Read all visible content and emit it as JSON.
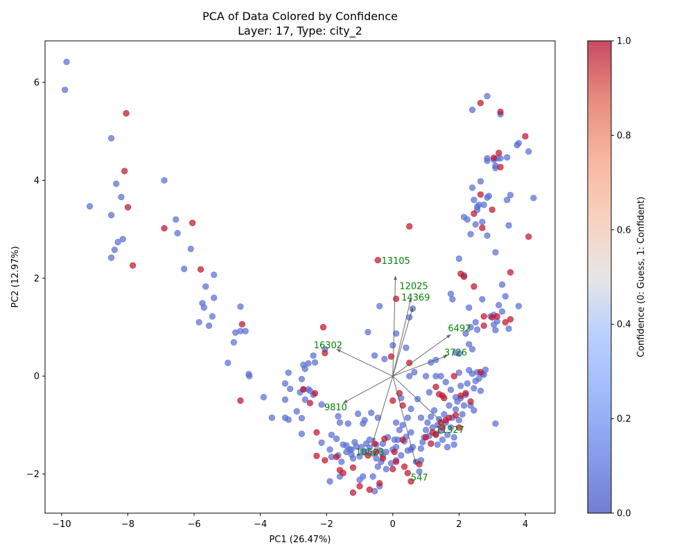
{
  "chart_data": {
    "type": "scatter",
    "title": "PCA of Data Colored by Confidence",
    "subtitle": "Layer: 17, Type: city_2",
    "xlabel": "PC1 (26.47%)",
    "ylabel": "PC2 (12.97%)",
    "xlim": [
      -10.5,
      4.9
    ],
    "ylim": [
      -2.8,
      6.85
    ],
    "xticks": [
      -10,
      -8,
      -6,
      -4,
      -2,
      0,
      2,
      4
    ],
    "yticks": [
      -2,
      0,
      2,
      4,
      6
    ],
    "grid": false,
    "colorbar": {
      "label": "Confidence (0: Guess, 1: Confident)",
      "range": [
        0,
        1
      ],
      "ticks": [
        "0.0",
        "0.2",
        "0.4",
        "0.6",
        "0.8",
        "1.0"
      ],
      "low_color": "#5a6fd3",
      "high_color": "#c0152c",
      "colormap": "coolwarm"
    },
    "points_low": [
      [
        -9.85,
        6.42
      ],
      [
        -9.9,
        5.85
      ],
      [
        -9.15,
        3.47
      ],
      [
        -8.5,
        4.86
      ],
      [
        -8.35,
        3.93
      ],
      [
        -8.2,
        3.66
      ],
      [
        -8.5,
        3.29
      ],
      [
        -8.3,
        2.74
      ],
      [
        -8.4,
        2.58
      ],
      [
        -8.15,
        2.8
      ],
      [
        -8.5,
        2.42
      ],
      [
        -6.9,
        4.0
      ],
      [
        -6.55,
        3.2
      ],
      [
        -6.5,
        2.92
      ],
      [
        -6.3,
        2.19
      ],
      [
        -6.1,
        2.6
      ],
      [
        -5.85,
        1.1
      ],
      [
        -5.75,
        1.49
      ],
      [
        -5.65,
        1.83
      ],
      [
        -5.7,
        1.4
      ],
      [
        -5.4,
        2.07
      ],
      [
        -5.4,
        1.6
      ],
      [
        -5.45,
        1.22
      ],
      [
        -5.55,
        1.03
      ],
      [
        -4.6,
        1.42
      ],
      [
        -4.6,
        0.92
      ],
      [
        -4.45,
        0.92
      ],
      [
        -4.75,
        0.89
      ],
      [
        -4.8,
        0.69
      ],
      [
        -4.98,
        0.27
      ],
      [
        -4.35,
        0.04
      ],
      [
        -4.33,
        0.0
      ],
      [
        -3.9,
        -0.43
      ],
      [
        -3.65,
        -0.85
      ],
      [
        -3.25,
        -0.15
      ],
      [
        -3.15,
        0.07
      ],
      [
        -3.25,
        -0.48
      ],
      [
        -3.1,
        -0.26
      ],
      [
        -3.25,
        -0.85
      ],
      [
        -3.15,
        -0.89
      ],
      [
        -2.9,
        -0.72
      ],
      [
        -2.8,
        -0.33
      ],
      [
        -2.75,
        -0.06
      ],
      [
        -2.7,
        -0.27
      ],
      [
        -2.65,
        0.15
      ],
      [
        -2.55,
        -0.27
      ],
      [
        -2.55,
        0.26
      ],
      [
        -2.7,
        0.23
      ],
      [
        -2.5,
        -0.3
      ],
      [
        -2.4,
        -0.38
      ],
      [
        -2.35,
        0.28
      ],
      [
        -2.4,
        0.42
      ],
      [
        -2.75,
        -0.86
      ],
      [
        -2.65,
        -0.48
      ],
      [
        -2.75,
        -1.18
      ],
      [
        -2.05,
        0.55
      ],
      [
        -2.15,
        -0.58
      ],
      [
        -2.15,
        -1.36
      ],
      [
        -1.9,
        -1.5
      ],
      [
        -1.85,
        -1.2
      ],
      [
        -1.7,
        -1.28
      ],
      [
        -1.6,
        -0.95
      ],
      [
        -1.65,
        -0.82
      ],
      [
        -1.85,
        -1.65
      ],
      [
        -1.65,
        -1.62
      ],
      [
        -1.9,
        -2.15
      ],
      [
        -1.6,
        -2.05
      ],
      [
        -1.5,
        -1.4
      ],
      [
        -1.4,
        -1.55
      ],
      [
        -1.3,
        -1.5
      ],
      [
        -1.2,
        -1.68
      ],
      [
        -1.1,
        -1.44
      ],
      [
        -1.0,
        -1.64
      ],
      [
        -0.9,
        -1.55
      ],
      [
        -0.8,
        -1.38
      ],
      [
        -0.7,
        -1.46
      ],
      [
        -0.6,
        -1.58
      ],
      [
        -0.5,
        -1.68
      ],
      [
        -0.4,
        -1.52
      ],
      [
        -1.05,
        -0.77
      ],
      [
        -1.35,
        -0.97
      ],
      [
        -0.9,
        -0.97
      ],
      [
        -0.85,
        -0.9
      ],
      [
        -0.65,
        -0.75
      ],
      [
        -0.45,
        -0.85
      ],
      [
        -0.55,
        0.42
      ],
      [
        -0.75,
        0.9
      ],
      [
        -0.4,
        1.43
      ],
      [
        -0.25,
        0.35
      ],
      [
        0.1,
        0.87
      ],
      [
        0.0,
        0.63
      ],
      [
        0.4,
        0.58
      ],
      [
        0.5,
        1.2
      ],
      [
        0.6,
        1.38
      ],
      [
        0.5,
        0.0
      ],
      [
        0.65,
        0.08
      ],
      [
        0.75,
        -0.47
      ],
      [
        0.85,
        -0.85
      ],
      [
        0.55,
        -0.67
      ],
      [
        0.25,
        -0.45
      ],
      [
        0.1,
        -0.95
      ],
      [
        0.2,
        -1.1
      ],
      [
        0.4,
        -1.24
      ],
      [
        0.55,
        -1.15
      ],
      [
        0.05,
        -1.3
      ],
      [
        0.1,
        -1.45
      ],
      [
        0.25,
        -1.62
      ],
      [
        0.1,
        -1.72
      ],
      [
        -0.05,
        -1.78
      ],
      [
        -0.2,
        -1.55
      ],
      [
        -0.3,
        -1.38
      ],
      [
        -0.15,
        -1.25
      ],
      [
        0.35,
        -1.33
      ],
      [
        0.45,
        -1.52
      ],
      [
        0.6,
        -1.45
      ],
      [
        0.7,
        -1.75
      ],
      [
        0.85,
        -1.72
      ],
      [
        0.8,
        -1.95
      ],
      [
        0.85,
        -1.48
      ],
      [
        0.9,
        -1.35
      ],
      [
        0.95,
        -1.25
      ],
      [
        1.0,
        -1.1
      ],
      [
        1.05,
        -0.95
      ],
      [
        1.1,
        -1.22
      ],
      [
        1.15,
        -0.83
      ],
      [
        1.2,
        -1.05
      ],
      [
        1.25,
        -0.7
      ],
      [
        1.3,
        -1.18
      ],
      [
        1.35,
        -1.0
      ],
      [
        1.4,
        -0.88
      ],
      [
        1.45,
        -1.12
      ],
      [
        1.5,
        -1.3
      ],
      [
        1.55,
        -0.78
      ],
      [
        1.6,
        -0.95
      ],
      [
        1.65,
        -1.2
      ],
      [
        1.7,
        -0.6
      ],
      [
        1.75,
        -1.05
      ],
      [
        1.8,
        -0.85
      ],
      [
        1.85,
        -1.25
      ],
      [
        1.9,
        -0.68
      ],
      [
        1.95,
        -0.52
      ],
      [
        2.0,
        -0.9
      ],
      [
        2.05,
        -0.45
      ],
      [
        2.1,
        -0.78
      ],
      [
        2.15,
        -0.6
      ],
      [
        1.85,
        -1.4
      ],
      [
        1.65,
        -1.45
      ],
      [
        1.35,
        -1.4
      ],
      [
        1.1,
        -0.33
      ],
      [
        1.3,
        0.0
      ],
      [
        1.0,
        0.0
      ],
      [
        1.15,
        0.28
      ],
      [
        1.3,
        0.33
      ],
      [
        1.45,
        0.0
      ],
      [
        1.6,
        -0.12
      ],
      [
        1.75,
        -0.28
      ],
      [
        1.9,
        -0.43
      ],
      [
        2.0,
        0.07
      ],
      [
        2.05,
        -0.2
      ],
      [
        2.2,
        -0.38
      ],
      [
        2.3,
        0.12
      ],
      [
        2.4,
        0.05
      ],
      [
        2.45,
        -0.25
      ],
      [
        2.5,
        -0.1
      ],
      [
        2.6,
        -0.05
      ],
      [
        2.65,
        -0.3
      ],
      [
        2.7,
        0.05
      ],
      [
        2.75,
        0.03
      ],
      [
        2.8,
        0.13
      ],
      [
        2.35,
        -0.6
      ],
      [
        2.45,
        -0.7
      ],
      [
        2.55,
        0.08
      ],
      [
        2.25,
        -0.15
      ],
      [
        1.75,
        1.68
      ],
      [
        1.8,
        1.57
      ],
      [
        2.0,
        2.4
      ],
      [
        1.9,
        0.48
      ],
      [
        2.0,
        0.46
      ],
      [
        2.2,
        0.87
      ],
      [
        2.3,
        0.65
      ],
      [
        2.35,
        1.0
      ],
      [
        2.4,
        0.55
      ],
      [
        2.5,
        1.1
      ],
      [
        2.55,
        0.95
      ],
      [
        2.7,
        1.57
      ],
      [
        2.3,
        1.4
      ],
      [
        2.15,
        2.06
      ],
      [
        2.25,
        3.2
      ],
      [
        2.15,
        3.25
      ],
      [
        2.35,
        2.9
      ],
      [
        2.4,
        3.85
      ],
      [
        2.45,
        3.6
      ],
      [
        2.5,
        3.1
      ],
      [
        2.55,
        3.4
      ],
      [
        2.6,
        3.5
      ],
      [
        2.55,
        3.46
      ],
      [
        2.65,
        3.98
      ],
      [
        2.7,
        3.15
      ],
      [
        2.75,
        3.5
      ],
      [
        2.85,
        3.65
      ],
      [
        2.9,
        3.68
      ],
      [
        2.85,
        2.87
      ],
      [
        2.4,
        5.44
      ],
      [
        2.85,
        5.72
      ],
      [
        3.25,
        5.35
      ],
      [
        2.85,
        4.4
      ],
      [
        2.85,
        4.45
      ],
      [
        3.1,
        4.3
      ],
      [
        3.1,
        4.25
      ],
      [
        3.15,
        4.45
      ],
      [
        3.05,
        4.42
      ],
      [
        3.25,
        4.45
      ],
      [
        3.45,
        4.47
      ],
      [
        3.5,
        3.08
      ],
      [
        3.45,
        3.6
      ],
      [
        3.55,
        3.7
      ],
      [
        3.8,
        4.76
      ],
      [
        3.75,
        4.72
      ],
      [
        4.1,
        4.59
      ],
      [
        4.25,
        3.64
      ],
      [
        3.1,
        2.53
      ],
      [
        3.3,
        1.87
      ],
      [
        3.2,
        1.45
      ],
      [
        3.05,
        1.25
      ],
      [
        2.95,
        1.22
      ],
      [
        3.1,
        0.94
      ],
      [
        3.3,
        1.32
      ],
      [
        3.05,
        1.05
      ],
      [
        3.4,
        1.63
      ],
      [
        3.15,
        1.12
      ],
      [
        3.8,
        1.43
      ],
      [
        3.5,
        0.97
      ],
      [
        3.1,
        -0.97
      ],
      [
        -0.3,
        -1.62
      ],
      [
        -0.5,
        -1.4
      ],
      [
        -0.7,
        -1.3
      ],
      [
        -0.8,
        -1.55
      ],
      [
        -0.95,
        -1.45
      ],
      [
        -1.15,
        -1.35
      ],
      [
        -1.25,
        -1.6
      ],
      [
        -1.4,
        -1.42
      ],
      [
        -0.35,
        -1.75
      ],
      [
        0.0,
        -1.5
      ],
      [
        0.15,
        -1.3
      ],
      [
        0.3,
        -1.0
      ],
      [
        0.45,
        -0.85
      ],
      [
        -0.45,
        -1.85
      ],
      [
        -0.6,
        -2.05
      ],
      [
        -0.9,
        -2.05
      ],
      [
        -1.0,
        -2.12
      ],
      [
        -0.4,
        -2.25
      ],
      [
        -0.55,
        -2.35
      ],
      [
        -1.25,
        -1.5
      ],
      [
        -1.55,
        -1.75
      ],
      [
        -0.2,
        -1.9
      ],
      [
        0.55,
        -1.5
      ]
    ],
    "points_high": [
      [
        -8.05,
        5.37
      ],
      [
        -8.1,
        4.19
      ],
      [
        -8.0,
        3.45
      ],
      [
        -7.85,
        2.26
      ],
      [
        -6.9,
        3.02
      ],
      [
        -6.05,
        3.13
      ],
      [
        -5.8,
        2.18
      ],
      [
        -4.55,
        1.06
      ],
      [
        -4.6,
        -0.5
      ],
      [
        -2.1,
        1.0
      ],
      [
        -2.05,
        0.47
      ],
      [
        -2.7,
        -0.27
      ],
      [
        -2.5,
        -0.55
      ],
      [
        -2.35,
        -0.35
      ],
      [
        -2.3,
        -1.15
      ],
      [
        -2.3,
        -1.63
      ],
      [
        -2.05,
        -1.72
      ],
      [
        -1.6,
        -1.92
      ],
      [
        -1.5,
        -1.98
      ],
      [
        -1.7,
        -1.65
      ],
      [
        -1.2,
        -1.87
      ],
      [
        -1.2,
        -2.38
      ],
      [
        -1.0,
        -2.25
      ],
      [
        -0.7,
        -2.32
      ],
      [
        -0.4,
        -2.19
      ],
      [
        -0.5,
        -1.55
      ],
      [
        -0.3,
        -1.68
      ],
      [
        -0.55,
        -1.38
      ],
      [
        -0.25,
        -1.28
      ],
      [
        -0.75,
        -1.62
      ],
      [
        -0.45,
        2.37
      ],
      [
        0.5,
        3.06
      ],
      [
        0.1,
        1.58
      ],
      [
        0.0,
        -0.5
      ],
      [
        -0.05,
        0.4
      ],
      [
        0.5,
        0.27
      ],
      [
        0.2,
        -0.35
      ],
      [
        0.3,
        -0.6
      ],
      [
        0.05,
        -1.55
      ],
      [
        0.1,
        -1.75
      ],
      [
        0.0,
        -1.9
      ],
      [
        0.3,
        -1.3
      ],
      [
        0.35,
        -1.85
      ],
      [
        0.45,
        -1.98
      ],
      [
        0.55,
        -2.15
      ],
      [
        0.8,
        -1.8
      ],
      [
        1.0,
        -1.25
      ],
      [
        1.15,
        -1.38
      ],
      [
        1.2,
        -1.15
      ],
      [
        1.3,
        -0.22
      ],
      [
        1.4,
        -0.37
      ],
      [
        1.5,
        -0.4
      ],
      [
        1.55,
        -0.45
      ],
      [
        1.6,
        -0.9
      ],
      [
        1.7,
        -0.85
      ],
      [
        1.5,
        -1.05
      ],
      [
        1.3,
        -1.2
      ],
      [
        1.45,
        -0.95
      ],
      [
        1.9,
        -0.8
      ],
      [
        2.0,
        -1.05
      ],
      [
        2.05,
        -0.4
      ],
      [
        1.85,
        0.0
      ],
      [
        2.2,
        -0.35
      ],
      [
        2.35,
        -0.52
      ],
      [
        2.65,
        0.08
      ],
      [
        2.05,
        2.09
      ],
      [
        2.15,
        2.03
      ],
      [
        2.45,
        1.83
      ],
      [
        2.45,
        3.32
      ],
      [
        2.65,
        3.71
      ],
      [
        2.7,
        3.03
      ],
      [
        2.65,
        5.58
      ],
      [
        3.25,
        5.4
      ],
      [
        3.0,
        3.4
      ],
      [
        3.05,
        4.46
      ],
      [
        3.2,
        4.56
      ],
      [
        3.25,
        4.27
      ],
      [
        4.0,
        4.9
      ],
      [
        4.1,
        2.85
      ],
      [
        3.55,
        2.12
      ],
      [
        2.75,
        1.22
      ],
      [
        2.75,
        1.03
      ],
      [
        3.0,
        1.2
      ],
      [
        3.15,
        1.22
      ],
      [
        3.4,
        1.1
      ],
      [
        3.55,
        1.16
      ]
    ],
    "loading_vectors": [
      {
        "label": "13105",
        "x": 0.08,
        "y": 2.05
      },
      {
        "label": "12025",
        "x": 0.55,
        "y": 1.6
      },
      {
        "label": "14369",
        "x": 0.6,
        "y": 1.4
      },
      {
        "label": "6492",
        "x": 1.75,
        "y": 0.85
      },
      {
        "label": "3726",
        "x": 1.65,
        "y": 0.42
      },
      {
        "label": "16302",
        "x": -1.7,
        "y": 0.55
      },
      {
        "label": "9810",
        "x": -1.5,
        "y": -0.55
      },
      {
        "label": "11327",
        "x": 1.5,
        "y": -0.95
      },
      {
        "label": "10523",
        "x": -0.6,
        "y": -1.35
      },
      {
        "label": "547",
        "x": 0.7,
        "y": -1.8
      }
    ]
  }
}
